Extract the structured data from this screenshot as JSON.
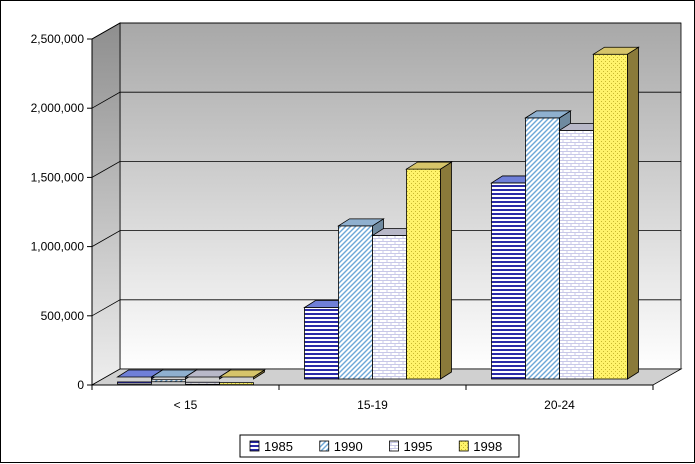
{
  "chart_data": {
    "type": "bar",
    "style": "3d-clustered-column",
    "categories": [
      "< 15",
      "15-19",
      "20-24"
    ],
    "series": [
      {
        "name": "1985",
        "values": [
          22000,
          560000,
          1460000
        ],
        "color": "#3333cc",
        "pattern": "horizontal-lines"
      },
      {
        "name": "1990",
        "values": [
          38000,
          1150000,
          1930000
        ],
        "color": "#99ccff",
        "pattern": "diagonal-lines"
      },
      {
        "name": "1995",
        "values": [
          20000,
          1080000,
          1840000
        ],
        "color": "#e8e8ff",
        "pattern": "brick"
      },
      {
        "name": "1998",
        "values": [
          17000,
          1560000,
          2390000
        ],
        "color": "#ffee66",
        "pattern": "dots"
      }
    ],
    "y_ticks": [
      "0",
      "500,000",
      "1,000,000",
      "1,500,000",
      "2,000,000",
      "2,500,000"
    ],
    "ylim": [
      0,
      2500000
    ],
    "grid": true,
    "legend_position": "bottom"
  }
}
